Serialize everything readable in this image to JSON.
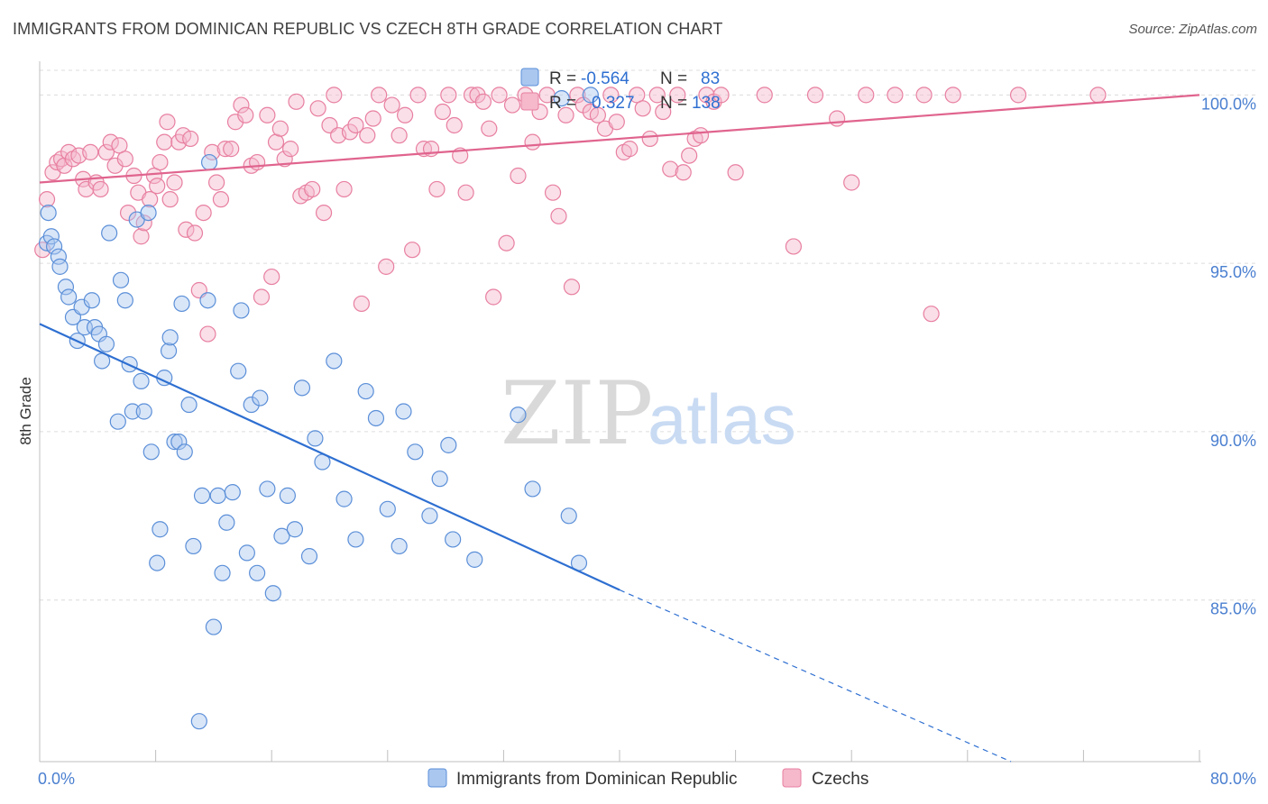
{
  "header": {
    "title": "IMMIGRANTS FROM DOMINICAN REPUBLIC VS CZECH 8TH GRADE CORRELATION CHART",
    "source": "Source: ZipAtlas.com"
  },
  "watermark": {
    "zip": "ZIP",
    "atlas": "atlas"
  },
  "colors": {
    "blue_fill": "#aac7f0",
    "blue_stroke": "#5b8fd8",
    "blue_line": "#2e6fd1",
    "pink_fill": "#f5b9cb",
    "pink_stroke": "#e87fa0",
    "pink_line": "#e0648e",
    "grid": "#dcdcdc",
    "tick_text": "#4a7fd0"
  },
  "legend": {
    "rows": [
      {
        "r_label": "R =",
        "r_value": "-0.564",
        "n_label": "N =",
        "n_value": "83"
      },
      {
        "r_label": "R =",
        "r_value": "0.327",
        "n_label": "N =",
        "n_value": "138"
      }
    ],
    "bottom": [
      "Immigrants from Dominican Republic",
      "Czechs"
    ]
  },
  "chart_data": {
    "type": "scatter",
    "title": "IMMIGRANTS FROM DOMINICAN REPUBLIC VS CZECH 8TH GRADE CORRELATION CHART",
    "ylabel": "8th Grade",
    "xlim": [
      0,
      80
    ],
    "ylim": [
      80.2,
      101.0
    ],
    "x_tick_labels": [
      "0.0%",
      "80.0%"
    ],
    "y_ticks": [
      85,
      90,
      95,
      100
    ],
    "y_tick_labels": [
      "85.0%",
      "90.0%",
      "95.0%",
      "100.0%"
    ],
    "grid": true,
    "legend_position": "top-center",
    "series": [
      {
        "name": "Immigrants from Dominican Republic",
        "color": "#aac7f0",
        "r": -0.564,
        "n": 83,
        "trend": {
          "x": [
            0,
            40
          ],
          "y": [
            93.2,
            85.3
          ],
          "dashed_to": {
            "x": 67,
            "y": 80.2
          }
        },
        "points": [
          [
            0.5,
            95.6
          ],
          [
            0.6,
            96.5
          ],
          [
            0.8,
            95.8
          ],
          [
            1.0,
            95.5
          ],
          [
            1.3,
            95.2
          ],
          [
            1.4,
            94.9
          ],
          [
            1.8,
            94.3
          ],
          [
            2.0,
            94.0
          ],
          [
            2.3,
            93.4
          ],
          [
            2.6,
            92.7
          ],
          [
            2.9,
            93.7
          ],
          [
            3.1,
            93.1
          ],
          [
            3.6,
            93.9
          ],
          [
            3.8,
            93.1
          ],
          [
            4.1,
            92.9
          ],
          [
            4.3,
            92.1
          ],
          [
            4.6,
            92.6
          ],
          [
            4.8,
            95.9
          ],
          [
            5.4,
            90.3
          ],
          [
            5.6,
            94.5
          ],
          [
            5.9,
            93.9
          ],
          [
            6.2,
            92.0
          ],
          [
            6.4,
            90.6
          ],
          [
            6.7,
            96.3
          ],
          [
            7.0,
            91.5
          ],
          [
            7.2,
            90.6
          ],
          [
            7.5,
            96.5
          ],
          [
            7.7,
            89.4
          ],
          [
            8.1,
            86.1
          ],
          [
            8.3,
            87.1
          ],
          [
            8.6,
            91.6
          ],
          [
            8.9,
            92.4
          ],
          [
            9.0,
            92.8
          ],
          [
            9.3,
            89.7
          ],
          [
            9.6,
            89.7
          ],
          [
            9.8,
            93.8
          ],
          [
            10.0,
            89.4
          ],
          [
            10.3,
            90.8
          ],
          [
            10.6,
            86.6
          ],
          [
            11.0,
            81.4
          ],
          [
            11.2,
            88.1
          ],
          [
            11.6,
            93.9
          ],
          [
            11.7,
            98.0
          ],
          [
            12.0,
            84.2
          ],
          [
            12.3,
            88.1
          ],
          [
            12.6,
            85.8
          ],
          [
            12.9,
            87.3
          ],
          [
            13.3,
            88.2
          ],
          [
            13.7,
            91.8
          ],
          [
            13.9,
            93.6
          ],
          [
            14.3,
            86.4
          ],
          [
            14.6,
            90.8
          ],
          [
            15.0,
            85.8
          ],
          [
            15.2,
            91.0
          ],
          [
            15.7,
            88.3
          ],
          [
            16.1,
            85.2
          ],
          [
            16.7,
            86.9
          ],
          [
            17.1,
            88.1
          ],
          [
            17.6,
            87.1
          ],
          [
            18.1,
            91.3
          ],
          [
            18.6,
            86.3
          ],
          [
            19.0,
            89.8
          ],
          [
            19.5,
            89.1
          ],
          [
            20.3,
            92.1
          ],
          [
            21.0,
            88.0
          ],
          [
            21.8,
            86.8
          ],
          [
            22.5,
            91.2
          ],
          [
            23.2,
            90.4
          ],
          [
            24.0,
            87.7
          ],
          [
            24.8,
            86.6
          ],
          [
            25.1,
            90.6
          ],
          [
            25.9,
            89.4
          ],
          [
            26.9,
            87.5
          ],
          [
            27.6,
            88.6
          ],
          [
            28.2,
            89.6
          ],
          [
            28.5,
            86.8
          ],
          [
            30.0,
            86.2
          ],
          [
            33.0,
            90.5
          ],
          [
            34.0,
            88.3
          ],
          [
            36.5,
            87.5
          ],
          [
            38.0,
            100.0
          ],
          [
            36.0,
            99.9
          ],
          [
            37.2,
            86.1
          ]
        ]
      },
      {
        "name": "Czechs",
        "color": "#f5b9cb",
        "r": 0.327,
        "n": 138,
        "trend": {
          "x": [
            0,
            80
          ],
          "y": [
            97.4,
            100.0
          ]
        },
        "points": [
          [
            0.2,
            95.4
          ],
          [
            0.5,
            96.9
          ],
          [
            0.9,
            97.7
          ],
          [
            1.2,
            98.0
          ],
          [
            1.5,
            98.1
          ],
          [
            1.7,
            97.9
          ],
          [
            2.0,
            98.3
          ],
          [
            2.3,
            98.1
          ],
          [
            2.7,
            98.2
          ],
          [
            3.0,
            97.5
          ],
          [
            3.2,
            97.2
          ],
          [
            3.5,
            98.3
          ],
          [
            3.9,
            97.4
          ],
          [
            4.2,
            97.2
          ],
          [
            4.6,
            98.3
          ],
          [
            4.9,
            98.6
          ],
          [
            5.2,
            97.9
          ],
          [
            5.5,
            98.5
          ],
          [
            5.9,
            98.1
          ],
          [
            6.1,
            96.5
          ],
          [
            6.5,
            97.6
          ],
          [
            6.8,
            97.1
          ],
          [
            7.0,
            95.8
          ],
          [
            7.2,
            96.2
          ],
          [
            7.6,
            96.9
          ],
          [
            7.9,
            97.6
          ],
          [
            8.1,
            97.3
          ],
          [
            8.3,
            98.0
          ],
          [
            8.6,
            98.6
          ],
          [
            8.8,
            99.2
          ],
          [
            9.0,
            96.9
          ],
          [
            9.3,
            97.4
          ],
          [
            9.6,
            98.6
          ],
          [
            9.9,
            98.8
          ],
          [
            10.1,
            96.0
          ],
          [
            10.4,
            98.7
          ],
          [
            10.7,
            95.9
          ],
          [
            11.0,
            94.2
          ],
          [
            11.3,
            96.5
          ],
          [
            11.6,
            92.9
          ],
          [
            11.9,
            98.3
          ],
          [
            12.2,
            97.4
          ],
          [
            12.5,
            96.9
          ],
          [
            12.8,
            98.4
          ],
          [
            13.2,
            98.4
          ],
          [
            13.5,
            99.2
          ],
          [
            13.9,
            99.7
          ],
          [
            14.2,
            99.4
          ],
          [
            14.6,
            97.9
          ],
          [
            15.0,
            98.0
          ],
          [
            15.3,
            94.0
          ],
          [
            15.7,
            99.4
          ],
          [
            16.0,
            94.6
          ],
          [
            16.3,
            98.6
          ],
          [
            16.6,
            99.0
          ],
          [
            16.9,
            98.1
          ],
          [
            17.3,
            98.4
          ],
          [
            17.7,
            99.8
          ],
          [
            18.0,
            97.0
          ],
          [
            18.4,
            97.1
          ],
          [
            18.8,
            97.2
          ],
          [
            19.2,
            99.6
          ],
          [
            19.6,
            96.5
          ],
          [
            20.0,
            99.1
          ],
          [
            20.3,
            100.0
          ],
          [
            20.6,
            98.8
          ],
          [
            21.0,
            97.2
          ],
          [
            21.4,
            98.9
          ],
          [
            21.8,
            99.1
          ],
          [
            22.2,
            93.8
          ],
          [
            22.6,
            98.8
          ],
          [
            23.0,
            99.3
          ],
          [
            23.4,
            100.0
          ],
          [
            23.9,
            94.9
          ],
          [
            24.3,
            99.7
          ],
          [
            24.8,
            98.8
          ],
          [
            25.2,
            99.4
          ],
          [
            25.7,
            95.4
          ],
          [
            26.1,
            100.0
          ],
          [
            26.5,
            98.4
          ],
          [
            27.0,
            98.4
          ],
          [
            27.4,
            97.2
          ],
          [
            27.8,
            99.5
          ],
          [
            28.2,
            100.0
          ],
          [
            28.6,
            99.1
          ],
          [
            29.0,
            98.2
          ],
          [
            29.4,
            97.1
          ],
          [
            29.8,
            100.0
          ],
          [
            30.2,
            100.0
          ],
          [
            30.6,
            99.8
          ],
          [
            31.0,
            99.0
          ],
          [
            31.3,
            94.0
          ],
          [
            31.7,
            100.0
          ],
          [
            32.2,
            95.6
          ],
          [
            32.6,
            99.7
          ],
          [
            33.0,
            97.6
          ],
          [
            33.5,
            100.0
          ],
          [
            34.0,
            98.6
          ],
          [
            34.5,
            99.5
          ],
          [
            35.0,
            100.0
          ],
          [
            35.4,
            97.1
          ],
          [
            35.8,
            96.4
          ],
          [
            36.3,
            99.4
          ],
          [
            36.7,
            94.3
          ],
          [
            37.1,
            100.0
          ],
          [
            37.5,
            99.7
          ],
          [
            38.0,
            99.5
          ],
          [
            38.5,
            99.4
          ],
          [
            39.0,
            99.0
          ],
          [
            39.4,
            100.0
          ],
          [
            39.8,
            99.2
          ],
          [
            40.3,
            98.3
          ],
          [
            40.7,
            98.4
          ],
          [
            41.2,
            100.0
          ],
          [
            41.6,
            99.6
          ],
          [
            42.1,
            98.7
          ],
          [
            42.6,
            100.0
          ],
          [
            43.0,
            99.5
          ],
          [
            43.5,
            97.8
          ],
          [
            44.0,
            100.0
          ],
          [
            44.4,
            97.7
          ],
          [
            44.8,
            98.2
          ],
          [
            45.2,
            98.7
          ],
          [
            45.6,
            98.8
          ],
          [
            46.0,
            100.0
          ],
          [
            46.5,
            99.8
          ],
          [
            47.0,
            100.0
          ],
          [
            48.0,
            97.7
          ],
          [
            50.0,
            100.0
          ],
          [
            52.0,
            95.5
          ],
          [
            53.5,
            100.0
          ],
          [
            55.0,
            99.3
          ],
          [
            56.0,
            97.4
          ],
          [
            57.0,
            100.0
          ],
          [
            59.0,
            100.0
          ],
          [
            61.0,
            100.0
          ],
          [
            61.5,
            93.5
          ],
          [
            63.0,
            100.0
          ],
          [
            67.5,
            100.0
          ],
          [
            73.0,
            100.0
          ]
        ]
      }
    ]
  }
}
